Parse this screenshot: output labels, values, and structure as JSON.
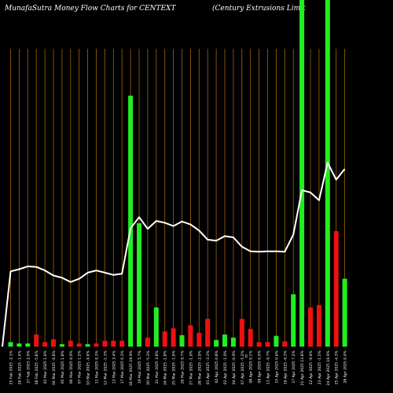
{
  "header": {
    "left_title": "MunafaSutra  Money Flow  Charts for CENTEXT",
    "right_title": "(Century Extrusions Limit"
  },
  "colors": {
    "background": "#000000",
    "grid": "#a0660a",
    "up": "#22ee22",
    "down": "#ee1111",
    "line": "#ffffff",
    "text": "#ffffff"
  },
  "chart_data": {
    "type": "bar",
    "title": "Money Flow",
    "grid": true,
    "bar_ylim": [
      0,
      100
    ],
    "line_ylim": [
      0,
      100
    ],
    "bars": [
      {
        "date": "25 Feb 2025",
        "change": "-2.1%",
        "v": 1.3,
        "dir": "up"
      },
      {
        "date": "26 Feb 2025",
        "change": "-1.4%",
        "v": 0.9,
        "dir": "up"
      },
      {
        "date": "27 Feb 2025",
        "change": "2.0%",
        "v": 0.9,
        "dir": "up"
      },
      {
        "date": "28 Feb 2025",
        "change": "-5.8%",
        "v": 3.5,
        "dir": "down"
      },
      {
        "date": "03 Mar 2025",
        "change": "1.6%",
        "v": 1.3,
        "dir": "down"
      },
      {
        "date": "04 Mar 2025",
        "change": "-0.8%",
        "v": 2.1,
        "dir": "down"
      },
      {
        "date": "05 Mar 2025",
        "change": "1.8%",
        "v": 0.7,
        "dir": "up"
      },
      {
        "date": "06 Mar 2025",
        "change": "0.0%",
        "v": 1.7,
        "dir": "down"
      },
      {
        "date": "07 Mar 2025",
        "change": "1.2%",
        "v": 0.9,
        "dir": "down"
      },
      {
        "date": "10 Mar 2025",
        "change": "-0.6%",
        "v": 0.7,
        "dir": "up"
      },
      {
        "date": "11 Mar 2025",
        "change": "0.3%",
        "v": 0.9,
        "dir": "down"
      },
      {
        "date": "12 Mar 2025",
        "change": "-1.3%",
        "v": 1.7,
        "dir": "down"
      },
      {
        "date": "13 Mar 2025",
        "change": "3.4%",
        "v": 1.7,
        "dir": "down"
      },
      {
        "date": "17 Mar 2025",
        "change": "0.3%",
        "v": 1.7,
        "dir": "down"
      },
      {
        "date": "18 Mar 2025",
        "change": "19.9%",
        "v": 72.4,
        "dir": "up"
      },
      {
        "date": "19 Mar 2025",
        "change": "5.7%",
        "v": 35.6,
        "dir": "up"
      },
      {
        "date": "20 Mar 2025",
        "change": "-5.3%",
        "v": 2.6,
        "dir": "down"
      },
      {
        "date": "21 Mar 2025",
        "change": "3.8%",
        "v": 11.3,
        "dir": "up"
      },
      {
        "date": "24 Mar 2025",
        "change": "-1.8%",
        "v": 4.4,
        "dir": "down"
      },
      {
        "date": "25 Mar 2025",
        "change": "-1.6%",
        "v": 5.3,
        "dir": "down"
      },
      {
        "date": "26 Mar 2025",
        "change": "0.7%",
        "v": 3.3,
        "dir": "up"
      },
      {
        "date": "27 Mar 2025",
        "change": "-1.9%",
        "v": 6.2,
        "dir": "down"
      },
      {
        "date": "28 Mar 2025",
        "change": "-2.0%",
        "v": 4.0,
        "dir": "down"
      },
      {
        "date": "01 Apr 2025",
        "change": "-3.3%",
        "v": 8.0,
        "dir": "down"
      },
      {
        "date": "02 Apr 2025",
        "change": "0.8%",
        "v": 1.9,
        "dir": "up"
      },
      {
        "date": "03 Apr 2025",
        "change": "-1.0%",
        "v": 3.5,
        "dir": "up"
      },
      {
        "date": "04 Apr 2025",
        "change": "-0.9%",
        "v": 2.6,
        "dir": "up"
      },
      {
        "date": "07 Apr 2025",
        "change": "-5.2%",
        "v": 8.0,
        "dir": "down"
      },
      {
        "date": "08 Apr 2025",
        "change": "0.1%",
        "v": 5.1,
        "dir": "down"
      },
      {
        "date": "09 Apr 2025",
        "change": "0.0%",
        "v": 1.3,
        "dir": "down"
      },
      {
        "date": "11 Apr 2025",
        "change": "-0.7%",
        "v": 1.3,
        "dir": "down"
      },
      {
        "date": "15 Apr 2025",
        "change": "0.6%",
        "v": 3.1,
        "dir": "up"
      },
      {
        "date": "16 Apr 2025",
        "change": "-0.3%",
        "v": 1.5,
        "dir": "down"
      },
      {
        "date": "17 Apr 2025",
        "change": "7.2%",
        "v": 15.1,
        "dir": "up"
      },
      {
        "date": "21 Apr 2025",
        "change": "13.8%",
        "v": 100,
        "dir": "up"
      },
      {
        "date": "22 Apr 2025",
        "change": "-0.9%",
        "v": 11.3,
        "dir": "down"
      },
      {
        "date": "23 Apr 2025",
        "change": "-1.5%",
        "v": 12.0,
        "dir": "down"
      },
      {
        "date": "24 Apr 2025",
        "change": "10.9%",
        "v": 100,
        "dir": "up"
      },
      {
        "date": "25 Apr 2025",
        "change": "-4.3%",
        "v": 33.3,
        "dir": "down"
      },
      {
        "date": "28 Apr 2025",
        "change": "0.4%",
        "v": 19.6,
        "dir": "up"
      }
    ],
    "line_values": [
      0,
      29.8,
      30.7,
      31.8,
      31.6,
      30.2,
      28.2,
      27.3,
      25.6,
      26.9,
      29.3,
      30.2,
      29.3,
      28.4,
      28.9,
      46.9,
      51.3,
      46.7,
      49.8,
      49.1,
      47.8,
      49.6,
      48.4,
      46.0,
      42.4,
      42.0,
      43.8,
      43.3,
      39.6,
      37.8,
      37.6,
      37.8,
      37.8,
      37.6,
      44.4,
      62.0,
      61.1,
      58.0,
      72.9,
      66.2,
      70.4
    ],
    "x_tick_labels": [
      "25 Feb 2025 -2.1%",
      "26 Feb 2025 -1.4%",
      "27 Feb 2025 2.0%",
      "28 Feb 2025 -5.8%",
      "03 Mar 2025 1.6%",
      "04 Mar 2025 -0.8%",
      "05 Mar 2025 1.8%",
      "06 Mar 2025 0.0%",
      "07 Mar 2025 1.2%",
      "10 Mar 2025 -0.6%",
      "11 Mar 2025 0.3%",
      "12 Mar 2025 -1.3%",
      "13 Mar 2025 3.4%",
      "17 Mar 2025 0.3%",
      "18 Mar 2025 19.9%",
      "19 Mar 2025 5.7%",
      "20 Mar 2025 -5.3%",
      "21 Mar 2025 3.8%",
      "24 Mar 2025 -1.8%",
      "25 Mar 2025 -1.6%",
      "26 Mar 2025 0.7%",
      "27 Mar 2025 -1.9%",
      "28 Mar 2025 -2.0%",
      "01 Apr 2025 -3.3%",
      "02 Apr 2025 0.8%",
      "03 Apr 2025 -1.0%",
      "04 Apr 2025 -0.9%",
      "07 Apr 2025 -5.2%",
      "08 Apr 2025 0.1%",
      "09 Apr 2025 0.0%",
      "11 Apr 2025 -0.7%",
      "15 Apr 2025 0.6%",
      "16 Apr 2025 -0.3%",
      "17 Apr 2025 7.2%",
      "21 Apr 2025 13.8%",
      "22 Apr 2025 -0.9%",
      "23 Apr 2025 -1.5%",
      "24 Apr 2025 10.9%",
      "25 Apr 2025 -4.3%",
      "28 Apr 2025 0.4%"
    ],
    "x_extra_tick": "0",
    "xlabel": "",
    "ylabel": ""
  }
}
